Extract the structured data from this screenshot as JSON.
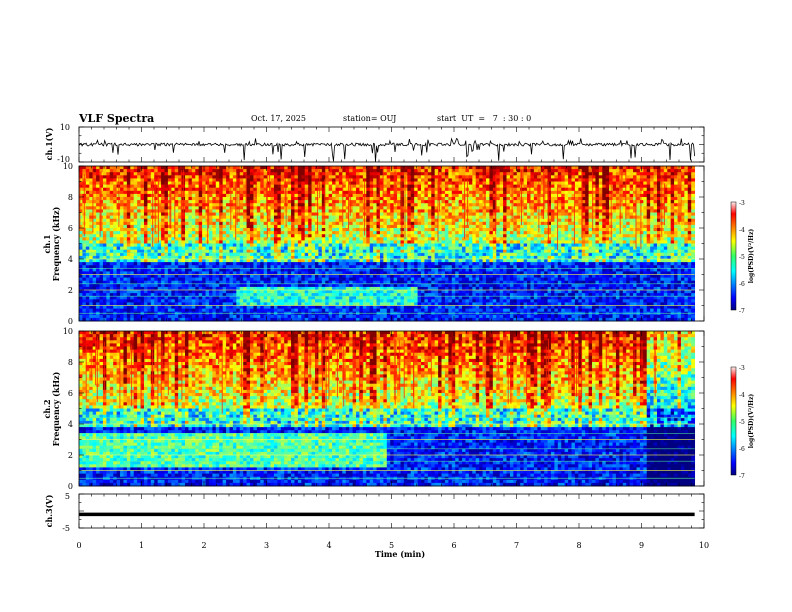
{
  "header": {
    "title": "VLF Spectra",
    "date": "Oct. 17, 2025",
    "station": "station= OUJ",
    "start_ut": "start  UT  =   7  : 30 : 0"
  },
  "chart_data": [
    {
      "type": "line",
      "panel": "ch1-waveform",
      "ylabel": "ch.1(V)",
      "ylim": [
        -10,
        10
      ],
      "yticks": [
        "10",
        "-10"
      ],
      "baseline": 0,
      "spikes": "frequent negative spikes up to about -10 V, positive up to about +3 V"
    },
    {
      "type": "heatmap",
      "panel": "ch1-spectrogram",
      "ylabel": "ch.1",
      "ylabel2": "Frequency (kHz)",
      "ylim": [
        0,
        10
      ],
      "yticks": [
        "0",
        "2",
        "4",
        "6",
        "8",
        "10"
      ],
      "colorbar": {
        "min": -7,
        "max": -3,
        "ticks": [
          "-3",
          "-4",
          "-5",
          "-6",
          "-7"
        ],
        "label": "log(PSD)(V²/Hz)"
      }
    },
    {
      "type": "heatmap",
      "panel": "ch2-spectrogram",
      "ylabel": "ch.2",
      "ylabel2": "Frequency (kHz)",
      "ylim": [
        0,
        10
      ],
      "yticks": [
        "0",
        "2",
        "4",
        "6",
        "8",
        "10"
      ],
      "colorbar": {
        "min": -7,
        "max": -3,
        "ticks": [
          "-3",
          "-4",
          "-5",
          "-6",
          "-7"
        ],
        "label": "log(PSD)(V²/Hz)"
      }
    },
    {
      "type": "line",
      "panel": "ch3-waveform",
      "ylabel": "ch.3(V)",
      "ylim": [
        -5,
        5
      ],
      "yticks": [
        "5",
        "-5"
      ],
      "value": -1
    }
  ],
  "xaxis": {
    "label": "Time (min)",
    "xlim": [
      0,
      10
    ],
    "ticks": [
      "0",
      "1",
      "2",
      "3",
      "4",
      "5",
      "6",
      "7",
      "8",
      "9",
      "10"
    ],
    "data_end": 9.85
  },
  "colors": {
    "line": "#000000"
  }
}
